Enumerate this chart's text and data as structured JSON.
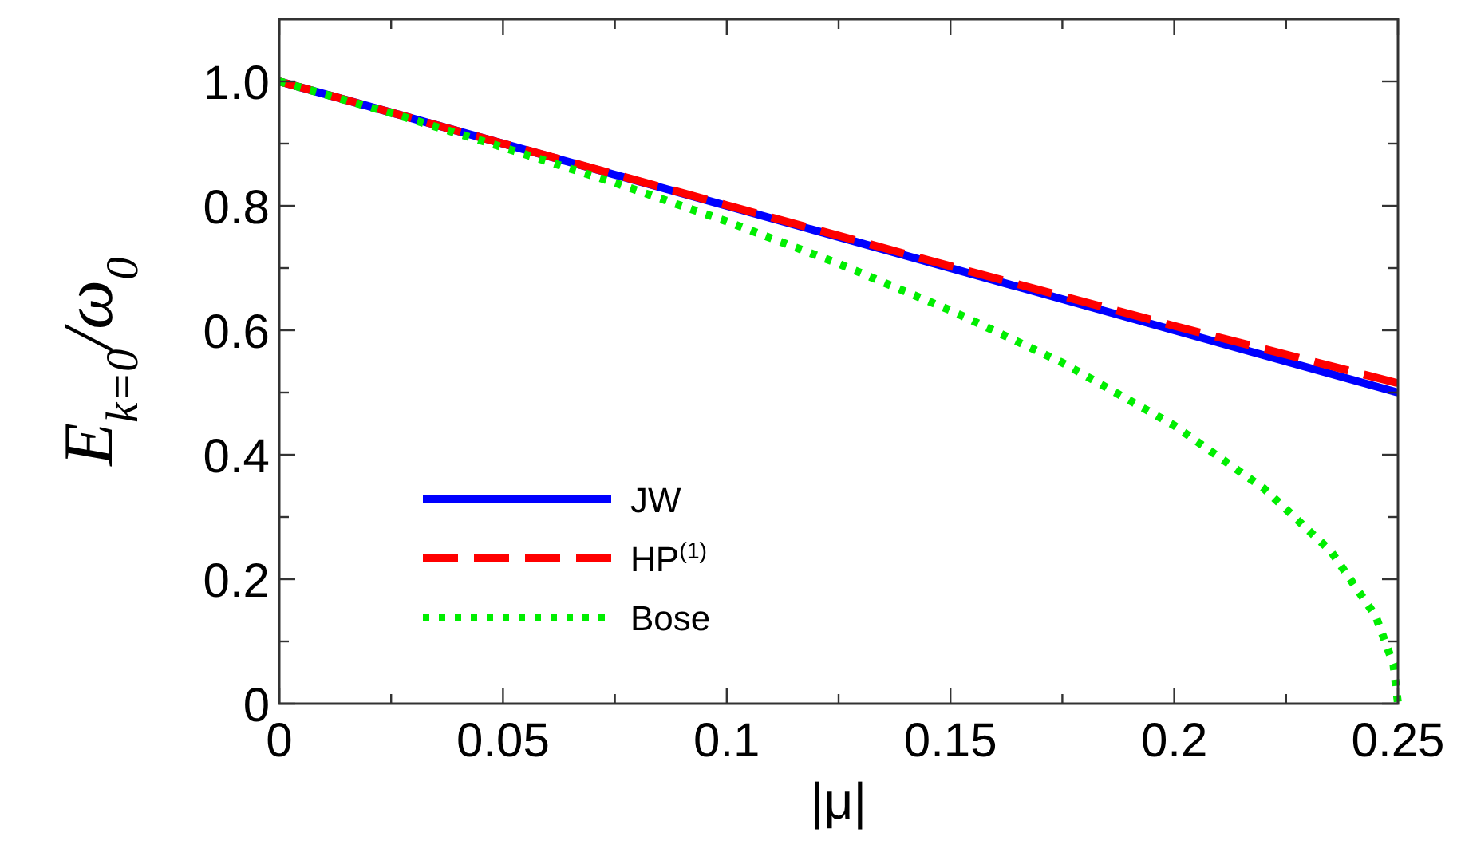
{
  "chart_data": {
    "type": "line",
    "xlabel": "|μ|",
    "ylabel": "E$_{k=0}$/ω$_{0}$",
    "xlim": [
      0,
      0.25
    ],
    "ylim": [
      0,
      1.1
    ],
    "xticks": [
      0,
      {
        "value": 0.025,
        "label": null
      },
      0.05,
      {
        "value": 0.075,
        "label": null
      },
      0.1,
      {
        "value": 0.125,
        "label": null
      },
      0.15,
      {
        "value": 0.175,
        "label": null
      },
      0.2,
      {
        "value": 0.225,
        "label": null
      },
      0.25
    ],
    "yticks": [
      0,
      {
        "value": 0.1,
        "label": null
      },
      0.2,
      {
        "value": 0.3,
        "label": null
      },
      0.4,
      {
        "value": 0.5,
        "label": null
      },
      0.6,
      {
        "value": 0.7,
        "label": null
      },
      0.8,
      {
        "value": 0.9,
        "label": null
      },
      {
        "value": 1,
        "label": "1.0"
      }
    ],
    "grid": false,
    "legend": "bottom left",
    "marker": "none",
    "series": [
      {
        "name": "JW",
        "color": "#0000ff",
        "line_style": "solid",
        "x": [
          0,
          0.25
        ],
        "values": [
          1,
          0.5
        ]
      },
      {
        "name": "HP$^{(1)}$",
        "color": "#ff0000",
        "line_style": "dashed",
        "x": [
          0,
          0.05,
          0.1,
          0.15,
          0.2,
          0.25
        ],
        "values": [
          1,
          0.9,
          0.801,
          0.703,
          0.607,
          0.515
        ]
      },
      {
        "name": "Bose",
        "color": "#00ee00",
        "line_style": "dotted",
        "x": [
          0,
          0.025,
          0.05,
          0.075,
          0.1,
          0.125,
          0.15,
          0.175,
          0.2,
          0.22,
          0.235,
          0.245,
          0.249,
          0.25
        ],
        "values": [
          1,
          0.949,
          0.894,
          0.837,
          0.775,
          0.707,
          0.632,
          0.548,
          0.447,
          0.346,
          0.245,
          0.141,
          0.063,
          0
        ]
      }
    ]
  }
}
